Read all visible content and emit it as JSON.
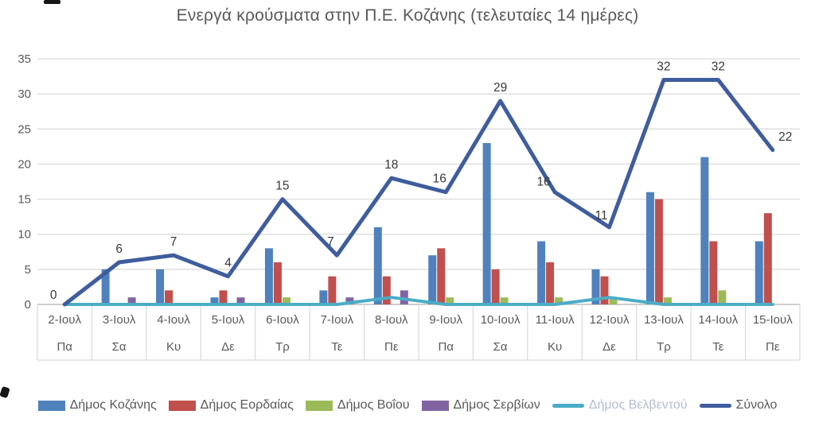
{
  "title": "Ενεργά κρούσματα στην Π.Ε. Κοζάνης (τελευταίες 14 ημέρες)",
  "chart_data": {
    "type": "bar",
    "subtype": "grouped bars with overlaid line series",
    "title": "Ενεργά κρούσματα στην Π.Ε. Κοζάνης (τελευταίες 14 ημέρες)",
    "categories": [
      "2-Ιουλ",
      "3-Ιουλ",
      "4-Ιουλ",
      "5-Ιουλ",
      "6-Ιουλ",
      "7-Ιουλ",
      "8-Ιουλ",
      "9-Ιουλ",
      "10-Ιουλ",
      "11-Ιουλ",
      "12-Ιουλ",
      "13-Ιουλ",
      "14-Ιουλ",
      "15-Ιουλ"
    ],
    "day_labels": [
      "Πα",
      "Σα",
      "Κυ",
      "Δε",
      "Τρ",
      "Τε",
      "Πε",
      "Πα",
      "Σα",
      "Κυ",
      "Δε",
      "Τρ",
      "Τε",
      "Πε"
    ],
    "series": [
      {
        "name": "Δήμος Κοζάνης",
        "type": "bar",
        "color": "#4F81BD",
        "values": [
          0,
          5,
          5,
          1,
          8,
          2,
          11,
          7,
          23,
          9,
          5,
          16,
          21,
          9
        ]
      },
      {
        "name": "Δήμος Εορδαίας",
        "type": "bar",
        "color": "#C0504D",
        "values": [
          0,
          0,
          2,
          2,
          6,
          4,
          4,
          8,
          5,
          6,
          4,
          15,
          9,
          13
        ]
      },
      {
        "name": "Δήμος Βοΐου",
        "type": "bar",
        "color": "#9BBB59",
        "values": [
          0,
          0,
          0,
          0,
          1,
          0,
          0,
          1,
          1,
          1,
          1,
          1,
          2,
          0
        ]
      },
      {
        "name": "Δήμος Σερβίων",
        "type": "bar",
        "color": "#8064A2",
        "values": [
          0,
          1,
          0,
          1,
          0,
          1,
          2,
          0,
          0,
          0,
          0,
          0,
          0,
          0
        ]
      },
      {
        "name": "Δήμος Βελβεντού",
        "type": "line",
        "color": "#4BACC6",
        "label_color": "#B3BCCE",
        "values": [
          0,
          0,
          0,
          0,
          0,
          0,
          1,
          0,
          0,
          0,
          1,
          0,
          0,
          0
        ]
      },
      {
        "name": "Σύνολο",
        "type": "line",
        "color": "#3F5D9D",
        "values": [
          0,
          6,
          7,
          4,
          15,
          7,
          18,
          16,
          29,
          16,
          11,
          32,
          32,
          22
        ],
        "data_labels": true
      }
    ],
    "y_ticks": [
      0,
      5,
      10,
      15,
      20,
      25,
      30,
      35
    ],
    "ylim": [
      0,
      35
    ],
    "grid": true,
    "legend_position": "bottom",
    "axis_text_color": "#595959",
    "data_label_color": "#383838",
    "gridline_color": "#d9d9d9"
  }
}
